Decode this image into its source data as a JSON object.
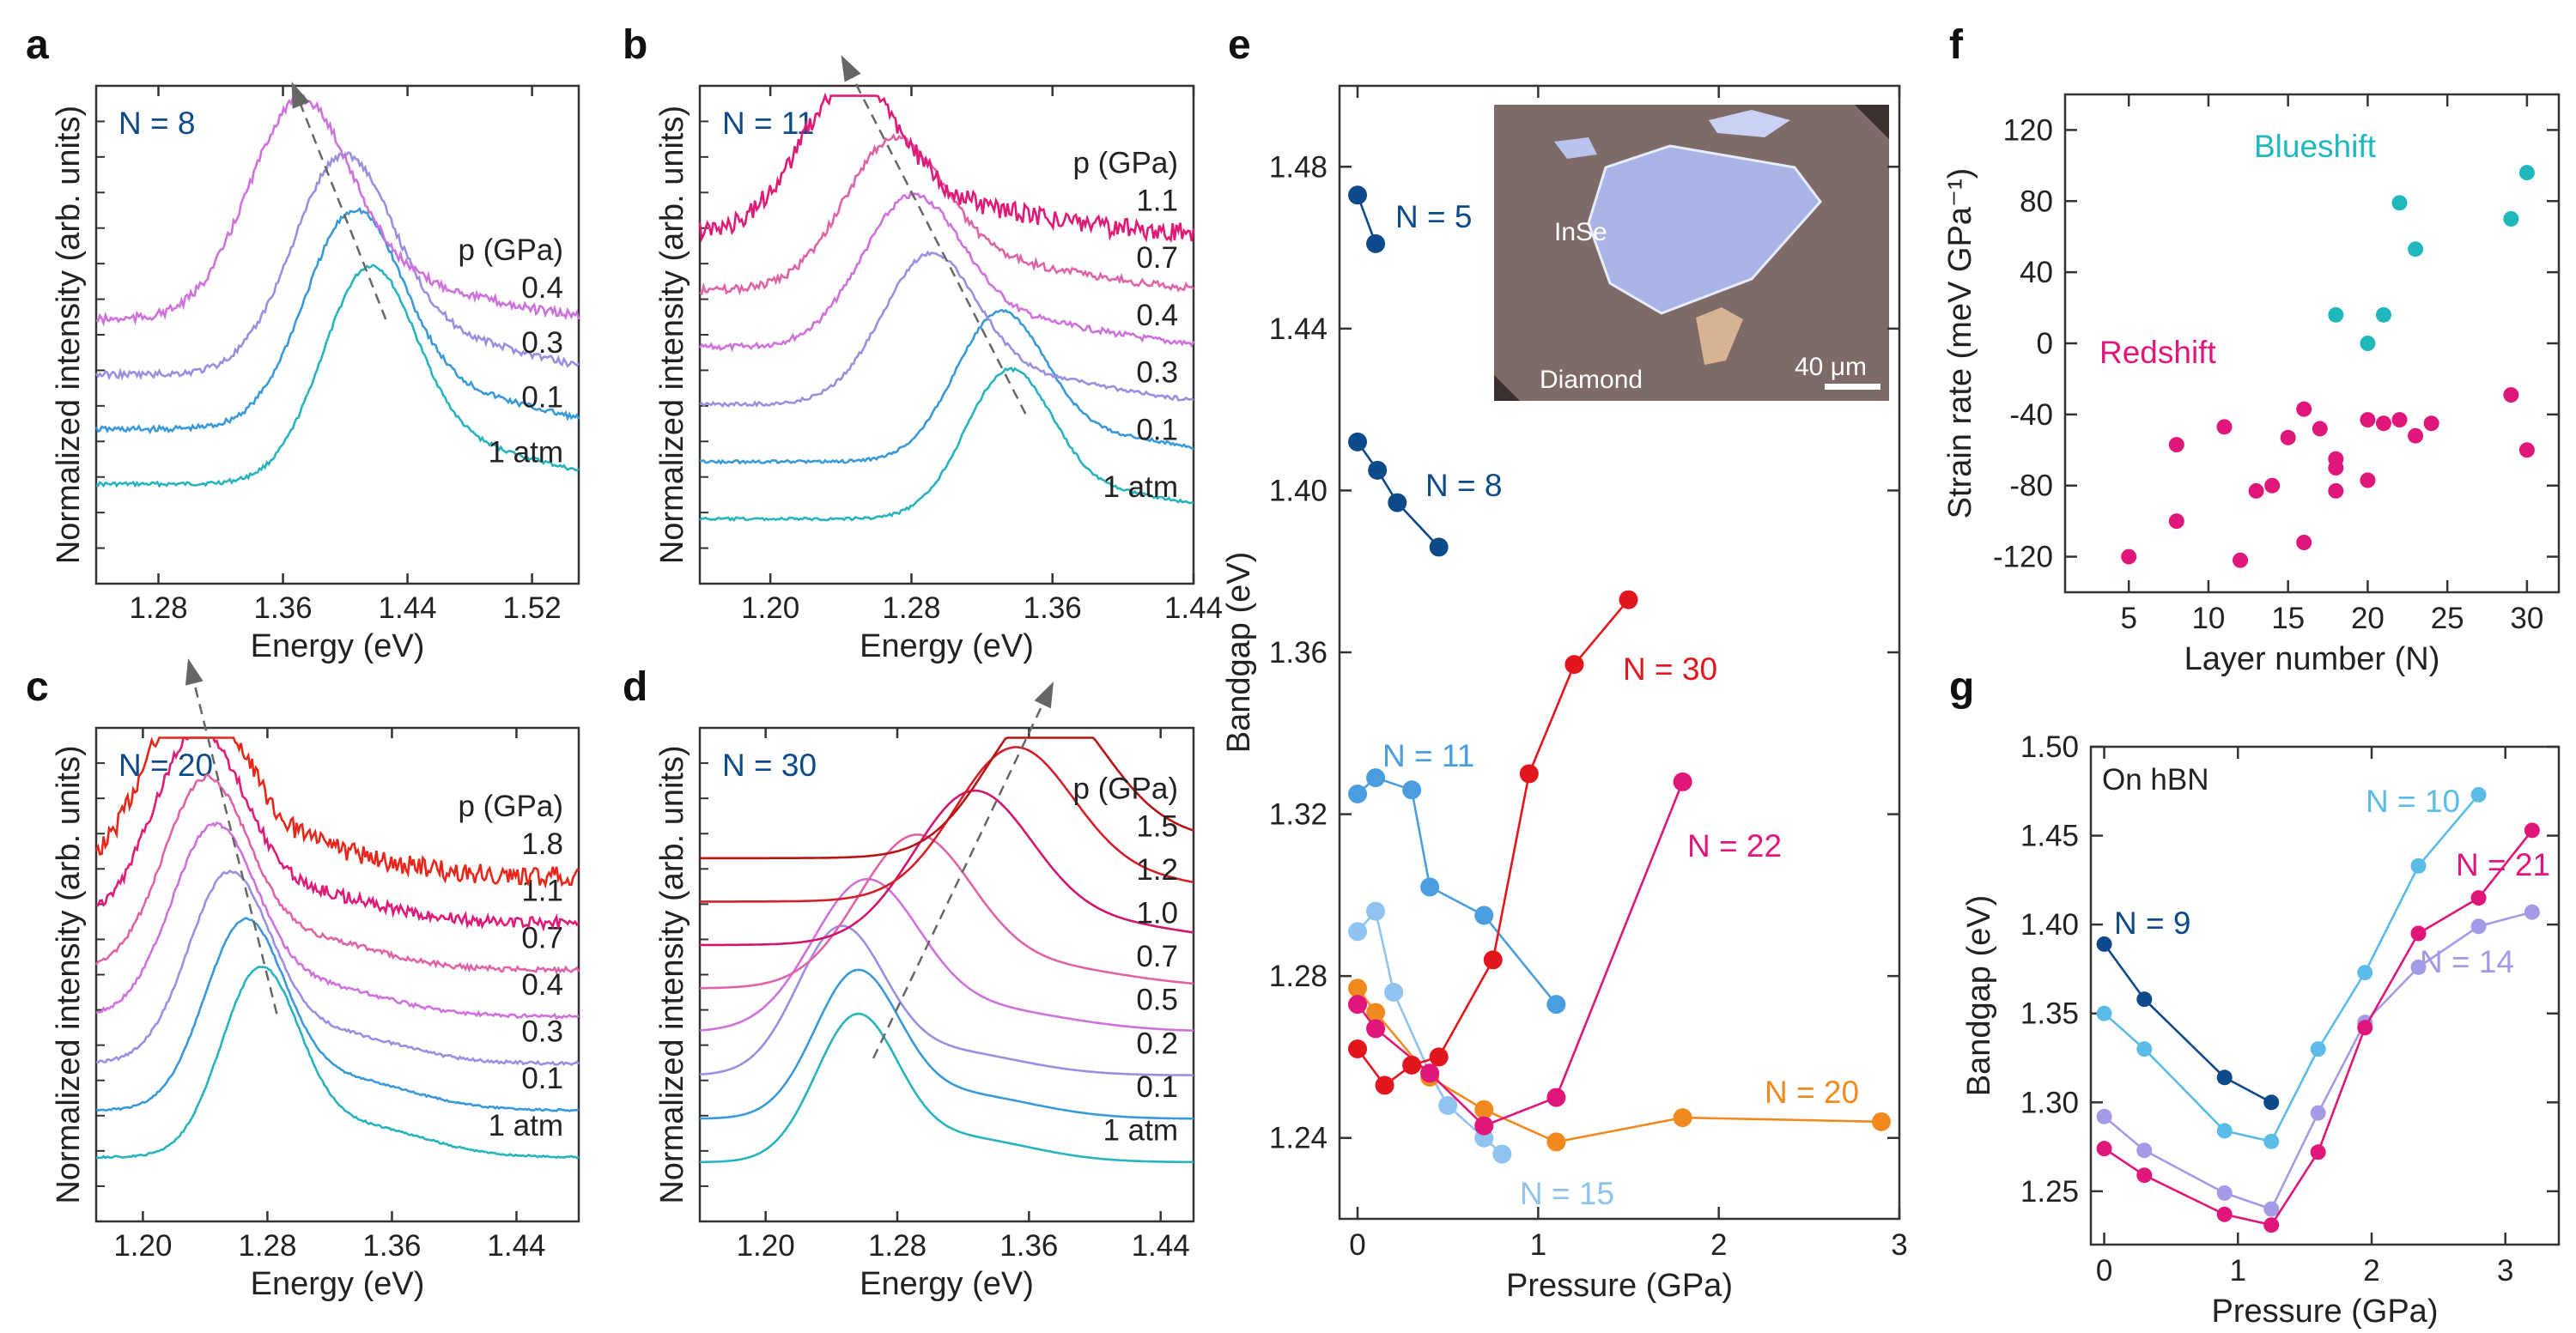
{
  "panels": [
    {
      "id": "a",
      "letter": "a",
      "kind": "spectra",
      "xlabel": "Energy (eV)",
      "ylabel": "Normalized intensity (arb. units)",
      "xlim": [
        1.24,
        1.55
      ],
      "xticks": [
        "1.28",
        "1.36",
        "1.44",
        "1.52"
      ],
      "title_n": "N = 8",
      "pressure_label": "p (GPa)",
      "curves": [
        {
          "label": "1 atm",
          "color": "#28b4be",
          "center": 1.415,
          "width": 0.042,
          "noise": 0.004
        },
        {
          "label": "0.1",
          "color": "#3a9ad9",
          "center": 1.405,
          "width": 0.044,
          "noise": 0.006
        },
        {
          "label": "0.3",
          "color": "#9b8fe0",
          "center": 1.398,
          "width": 0.045,
          "noise": 0.007
        },
        {
          "label": "0.4",
          "color": "#cf72dc",
          "center": 1.37,
          "width": 0.046,
          "noise": 0.009
        }
      ]
    },
    {
      "id": "b",
      "letter": "b",
      "kind": "spectra",
      "xlabel": "Energy (eV)",
      "ylabel": "Normalized intensity (arb. units)",
      "xlim": [
        1.16,
        1.44
      ],
      "xticks": [
        "1.20",
        "1.28",
        "1.36",
        "1.44"
      ],
      "title_n": "N = 11",
      "pressure_label": "p (GPa)",
      "curves": [
        {
          "label": "1 atm",
          "color": "#28b4be",
          "center": 1.335,
          "width": 0.035,
          "noise": 0.003
        },
        {
          "label": "0.1",
          "color": "#3a9ad9",
          "center": 1.33,
          "width": 0.036,
          "noise": 0.003
        },
        {
          "label": "0.3",
          "color": "#9b8fe0",
          "center": 1.29,
          "width": 0.038,
          "noise": 0.004
        },
        {
          "label": "0.4",
          "color": "#cf72dc",
          "center": 1.28,
          "width": 0.04,
          "noise": 0.006
        },
        {
          "label": "0.7",
          "color": "#e063a8",
          "center": 1.27,
          "width": 0.04,
          "noise": 0.008
        },
        {
          "label": "1.1",
          "color": "#e01a78",
          "center": 1.245,
          "width": 0.04,
          "noise": 0.02
        }
      ]
    },
    {
      "id": "c",
      "letter": "c",
      "kind": "spectra",
      "xlabel": "Energy (eV)",
      "ylabel": "Normalized intensity (arb. units)",
      "xlim": [
        1.17,
        1.48
      ],
      "xticks": [
        "1.20",
        "1.28",
        "1.36",
        "1.44"
      ],
      "title_n": "N = 20",
      "pressure_label": "p (GPa)",
      "curves": [
        {
          "label": "1 atm",
          "color": "#28b4be",
          "center": 1.275,
          "width": 0.035,
          "noise": 0.002
        },
        {
          "label": "0.1",
          "color": "#3a9ad9",
          "center": 1.265,
          "width": 0.036,
          "noise": 0.002
        },
        {
          "label": "0.3",
          "color": "#9b8fe0",
          "center": 1.255,
          "width": 0.037,
          "noise": 0.003
        },
        {
          "label": "0.4",
          "color": "#cf72dc",
          "center": 1.245,
          "width": 0.038,
          "noise": 0.004
        },
        {
          "label": "0.7",
          "color": "#e063a8",
          "center": 1.24,
          "width": 0.038,
          "noise": 0.005
        },
        {
          "label": "1.1",
          "color": "#e01a78",
          "center": 1.235,
          "width": 0.04,
          "noise": 0.012
        },
        {
          "label": "1.8",
          "color": "#e8271c",
          "center": 1.232,
          "width": 0.042,
          "noise": 0.02
        }
      ]
    },
    {
      "id": "d",
      "letter": "d",
      "kind": "spectra",
      "xlabel": "Energy (eV)",
      "ylabel": "Normalized intensity (arb. units)",
      "xlim": [
        1.16,
        1.46
      ],
      "xticks": [
        "1.20",
        "1.28",
        "1.36",
        "1.44"
      ],
      "title_n": "N = 30",
      "pressure_label": "p (GPa)",
      "curves": [
        {
          "label": "1 atm",
          "color": "#28b4be",
          "center": 1.255,
          "width": 0.035,
          "noise": 0.0
        },
        {
          "label": "0.1",
          "color": "#3a9ad9",
          "center": 1.255,
          "width": 0.036,
          "noise": 0.0
        },
        {
          "label": "0.2",
          "color": "#9b8fe0",
          "center": 1.245,
          "width": 0.037,
          "noise": 0.0
        },
        {
          "label": "0.5",
          "color": "#cf72dc",
          "center": 1.26,
          "width": 0.045,
          "noise": 0.0
        },
        {
          "label": "0.7",
          "color": "#e063a8",
          "center": 1.29,
          "width": 0.048,
          "noise": 0.0
        },
        {
          "label": "1.0",
          "color": "#d0166e",
          "center": 1.325,
          "width": 0.05,
          "noise": 0.0
        },
        {
          "label": "1.2",
          "color": "#d21f2a",
          "center": 1.35,
          "width": 0.05,
          "noise": 0.0
        },
        {
          "label": "1.5",
          "color": "#b81414",
          "center": 1.37,
          "width": 0.05,
          "noise": 0.0
        }
      ]
    },
    {
      "id": "e",
      "letter": "e",
      "kind": "scatter",
      "xlabel": "Pressure (GPa)",
      "ylabel": "Bandgap (eV)",
      "xlim": [
        -0.1,
        3.0
      ],
      "ylim": [
        1.22,
        1.5
      ],
      "xticks": [
        "0",
        "1",
        "2",
        "3"
      ],
      "yticks": [
        "1.24",
        "1.28",
        "1.32",
        "1.36",
        "1.40",
        "1.44",
        "1.48"
      ],
      "inset": {
        "label_top": "InSe",
        "label_bottom": "Diamond",
        "scale": "40 μm"
      },
      "series": [
        {
          "name": "N = 5",
          "color": "#0d4a8a",
          "points": [
            [
              0.0,
              1.473
            ],
            [
              0.1,
              1.461
            ]
          ]
        },
        {
          "name": "N = 8",
          "color": "#0d4a8a",
          "points": [
            [
              0.0,
              1.412
            ],
            [
              0.11,
              1.405
            ],
            [
              0.22,
              1.397
            ],
            [
              0.45,
              1.386
            ]
          ]
        },
        {
          "name": "N = 11",
          "color": "#4a9ee0",
          "points": [
            [
              0.0,
              1.325
            ],
            [
              0.1,
              1.329
            ],
            [
              0.3,
              1.326
            ],
            [
              0.4,
              1.302
            ],
            [
              0.7,
              1.295
            ],
            [
              1.1,
              1.273
            ]
          ]
        },
        {
          "name": "N = 15",
          "color": "#8ec4ef",
          "points": [
            [
              0.0,
              1.291
            ],
            [
              0.1,
              1.296
            ],
            [
              0.2,
              1.276
            ],
            [
              0.4,
              1.256
            ],
            [
              0.5,
              1.248
            ],
            [
              0.7,
              1.24
            ],
            [
              0.8,
              1.236
            ]
          ]
        },
        {
          "name": "N = 20",
          "color": "#f08a1e",
          "points": [
            [
              0.0,
              1.277
            ],
            [
              0.1,
              1.271
            ],
            [
              0.4,
              1.255
            ],
            [
              0.7,
              1.247
            ],
            [
              1.1,
              1.239
            ],
            [
              1.8,
              1.245
            ],
            [
              2.9,
              1.244
            ]
          ]
        },
        {
          "name": "N = 22",
          "color": "#e0167a",
          "points": [
            [
              0.0,
              1.273
            ],
            [
              0.1,
              1.267
            ],
            [
              0.4,
              1.256
            ],
            [
              0.7,
              1.243
            ],
            [
              1.1,
              1.25
            ],
            [
              1.8,
              1.328
            ]
          ]
        },
        {
          "name": "N = 30",
          "color": "#e3161e",
          "points": [
            [
              0.0,
              1.262
            ],
            [
              0.15,
              1.253
            ],
            [
              0.3,
              1.258
            ],
            [
              0.45,
              1.26
            ],
            [
              0.75,
              1.284
            ],
            [
              0.95,
              1.33
            ],
            [
              1.2,
              1.357
            ],
            [
              1.5,
              1.373
            ]
          ]
        }
      ]
    },
    {
      "id": "f",
      "letter": "f",
      "kind": "scatter",
      "xlabel": "Layer number (N)",
      "ylabel": "Strain rate (meV GPa⁻¹)",
      "xlim": [
        1,
        32
      ],
      "ylim": [
        -140,
        140
      ],
      "xticks": [
        "5",
        "10",
        "15",
        "20",
        "25",
        "30"
      ],
      "yticks": [
        "-120",
        "-80",
        "-40",
        "0",
        "40",
        "80",
        "120"
      ],
      "annotations": [
        "Blueshift",
        "Redshift"
      ],
      "series": [
        {
          "name": "Blueshift",
          "color": "#1fb9bd",
          "points": [
            [
              18,
              16
            ],
            [
              20,
              0
            ],
            [
              21,
              16
            ],
            [
              22,
              79
            ],
            [
              23,
              53
            ],
            [
              29,
              70
            ],
            [
              30,
              96
            ]
          ]
        },
        {
          "name": "Redshift",
          "color": "#e0167a",
          "points": [
            [
              5,
              -120
            ],
            [
              8,
              -100
            ],
            [
              8,
              -57
            ],
            [
              11,
              -47
            ],
            [
              12,
              -122
            ],
            [
              13,
              -83
            ],
            [
              14,
              -80
            ],
            [
              15,
              -53
            ],
            [
              16,
              -112
            ],
            [
              16,
              -37
            ],
            [
              17,
              -48
            ],
            [
              18,
              -65
            ],
            [
              18,
              -70
            ],
            [
              18,
              -83
            ],
            [
              20,
              -77
            ],
            [
              20,
              -43
            ],
            [
              21,
              -45
            ],
            [
              22,
              -43
            ],
            [
              23,
              -52
            ],
            [
              24,
              -45
            ],
            [
              29,
              -29
            ],
            [
              30,
              -60
            ]
          ]
        }
      ]
    },
    {
      "id": "g",
      "letter": "g",
      "kind": "scatter",
      "xlabel": "Pressure (GPa)",
      "ylabel": "Bandgap (eV)",
      "xlim": [
        -0.1,
        3.4
      ],
      "ylim": [
        1.22,
        1.5
      ],
      "xticks": [
        "0",
        "1",
        "2",
        "3"
      ],
      "yticks": [
        "1.25",
        "1.30",
        "1.35",
        "1.40",
        "1.45",
        "1.50"
      ],
      "note": "On hBN",
      "series": [
        {
          "name": "N = 9",
          "color": "#0d4a8a",
          "points": [
            [
              0.0,
              1.389
            ],
            [
              0.3,
              1.358
            ],
            [
              0.9,
              1.314
            ],
            [
              1.25,
              1.3
            ]
          ]
        },
        {
          "name": "N = 10",
          "color": "#5bbce8",
          "points": [
            [
              0.0,
              1.35
            ],
            [
              0.3,
              1.33
            ],
            [
              0.9,
              1.284
            ],
            [
              1.25,
              1.278
            ],
            [
              1.6,
              1.33
            ],
            [
              1.95,
              1.373
            ],
            [
              2.35,
              1.433
            ],
            [
              2.8,
              1.473
            ]
          ]
        },
        {
          "name": "N = 14",
          "color": "#a39be8",
          "points": [
            [
              0.0,
              1.292
            ],
            [
              0.3,
              1.273
            ],
            [
              0.9,
              1.249
            ],
            [
              1.25,
              1.24
            ],
            [
              1.6,
              1.294
            ],
            [
              1.95,
              1.345
            ],
            [
              2.35,
              1.376
            ],
            [
              2.8,
              1.399
            ],
            [
              3.2,
              1.407
            ]
          ]
        },
        {
          "name": "N = 21",
          "color": "#e0167a",
          "points": [
            [
              0.0,
              1.274
            ],
            [
              0.3,
              1.259
            ],
            [
              0.9,
              1.237
            ],
            [
              1.25,
              1.231
            ],
            [
              1.6,
              1.272
            ],
            [
              1.95,
              1.342
            ],
            [
              2.35,
              1.395
            ],
            [
              2.8,
              1.415
            ],
            [
              3.2,
              1.453
            ]
          ]
        }
      ]
    }
  ],
  "chart_data": [
    {
      "type": "line",
      "panel": "a",
      "title": "N = 8",
      "xlabel": "Energy (eV)",
      "ylabel": "Normalized intensity (arb. units)",
      "xlim": [
        1.24,
        1.55
      ],
      "series": [
        {
          "name": "1 atm",
          "peak_energy": 1.415
        },
        {
          "name": "0.1",
          "peak_energy": 1.405
        },
        {
          "name": "0.3",
          "peak_energy": 1.398
        },
        {
          "name": "0.4",
          "peak_energy": 1.37
        }
      ]
    },
    {
      "type": "line",
      "panel": "b",
      "title": "N = 11",
      "xlabel": "Energy (eV)",
      "ylabel": "Normalized intensity (arb. units)",
      "xlim": [
        1.16,
        1.44
      ],
      "series": [
        {
          "name": "1 atm",
          "peak_energy": 1.335
        },
        {
          "name": "0.1",
          "peak_energy": 1.33
        },
        {
          "name": "0.3",
          "peak_energy": 1.29
        },
        {
          "name": "0.4",
          "peak_energy": 1.28
        },
        {
          "name": "0.7",
          "peak_energy": 1.27
        },
        {
          "name": "1.1",
          "peak_energy": 1.245
        }
      ]
    },
    {
      "type": "line",
      "panel": "c",
      "title": "N = 20",
      "xlabel": "Energy (eV)",
      "ylabel": "Normalized intensity (arb. units)",
      "xlim": [
        1.17,
        1.48
      ],
      "series": [
        {
          "name": "1 atm",
          "peak_energy": 1.275
        },
        {
          "name": "0.1",
          "peak_energy": 1.265
        },
        {
          "name": "0.3",
          "peak_energy": 1.255
        },
        {
          "name": "0.4",
          "peak_energy": 1.245
        },
        {
          "name": "0.7",
          "peak_energy": 1.24
        },
        {
          "name": "1.1",
          "peak_energy": 1.235
        },
        {
          "name": "1.8",
          "peak_energy": 1.232
        }
      ]
    },
    {
      "type": "line",
      "panel": "d",
      "title": "N = 30",
      "xlabel": "Energy (eV)",
      "ylabel": "Normalized intensity (arb. units)",
      "xlim": [
        1.16,
        1.46
      ],
      "series": [
        {
          "name": "1 atm",
          "peak_energy": 1.255
        },
        {
          "name": "0.1",
          "peak_energy": 1.255
        },
        {
          "name": "0.2",
          "peak_energy": 1.245
        },
        {
          "name": "0.5",
          "peak_energy": 1.26
        },
        {
          "name": "0.7",
          "peak_energy": 1.29
        },
        {
          "name": "1.0",
          "peak_energy": 1.325
        },
        {
          "name": "1.2",
          "peak_energy": 1.35
        },
        {
          "name": "1.5",
          "peak_energy": 1.37
        }
      ]
    },
    {
      "type": "scatter",
      "panel": "e",
      "xlabel": "Pressure (GPa)",
      "ylabel": "Bandgap (eV)",
      "xlim": [
        -0.1,
        3.0
      ],
      "ylim": [
        1.22,
        1.5
      ],
      "series_ref": "panels.4.series"
    },
    {
      "type": "scatter",
      "panel": "f",
      "xlabel": "Layer number (N)",
      "ylabel": "Strain rate (meV GPa⁻¹)",
      "xlim": [
        1,
        32
      ],
      "ylim": [
        -140,
        140
      ],
      "series_ref": "panels.5.series"
    },
    {
      "type": "scatter",
      "panel": "g",
      "xlabel": "Pressure (GPa)",
      "ylabel": "Bandgap (eV)",
      "xlim": [
        -0.1,
        3.4
      ],
      "ylim": [
        1.22,
        1.5
      ],
      "series_ref": "panels.6.series"
    }
  ]
}
